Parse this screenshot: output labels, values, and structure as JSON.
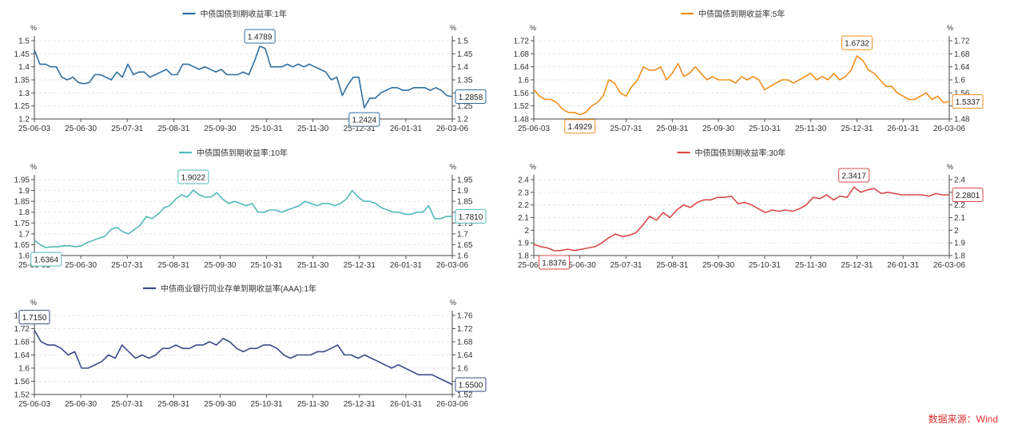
{
  "source_label": "数据来源：Wind",
  "chart_data": [
    {
      "type": "line",
      "title": "中债国债到期收益率:1年",
      "color": "#2e6fa0",
      "ylabel": "%",
      "ylim": [
        1.2,
        1.5
      ],
      "yticks": [
        1.2,
        1.25,
        1.3,
        1.35,
        1.4,
        1.45,
        1.5
      ],
      "x_ticks": [
        "25-06-03",
        "25-06-30",
        "25-07-31",
        "25-08-31",
        "25-09-30",
        "25-10-31",
        "25-11-30",
        "25-12-31",
        "26-01-31",
        "26-03-06"
      ],
      "grid": true,
      "series": [
        {
          "name": "中债国债到期收益率:1年",
          "values": [
            1.465,
            1.41,
            1.41,
            1.4,
            1.4,
            1.36,
            1.35,
            1.36,
            1.34,
            1.335,
            1.34,
            1.37,
            1.37,
            1.36,
            1.35,
            1.38,
            1.36,
            1.41,
            1.37,
            1.38,
            1.38,
            1.36,
            1.37,
            1.38,
            1.39,
            1.37,
            1.37,
            1.41,
            1.41,
            1.4,
            1.39,
            1.4,
            1.39,
            1.38,
            1.39,
            1.37,
            1.37,
            1.37,
            1.38,
            1.37,
            1.42,
            1.4789,
            1.47,
            1.4,
            1.4,
            1.4,
            1.41,
            1.4,
            1.41,
            1.4,
            1.41,
            1.4,
            1.39,
            1.38,
            1.35,
            1.36,
            1.29,
            1.33,
            1.36,
            1.36,
            1.2424,
            1.28,
            1.28,
            1.3,
            1.31,
            1.32,
            1.32,
            1.31,
            1.31,
            1.32,
            1.32,
            1.32,
            1.31,
            1.32,
            1.31,
            1.29,
            1.2858
          ]
        }
      ],
      "annotations": [
        {
          "label": "1.4789",
          "index": 41
        },
        {
          "label": "1.2424",
          "index": 60
        },
        {
          "label": "1.2858",
          "index": 76,
          "end": true
        }
      ]
    },
    {
      "type": "line",
      "title": "中债国债到期收益率:5年",
      "color": "#f28e1c",
      "ylabel": "%",
      "ylim": [
        1.48,
        1.72
      ],
      "yticks": [
        1.48,
        1.52,
        1.56,
        1.6,
        1.64,
        1.68,
        1.72
      ],
      "x_ticks": [
        "25-06-03",
        "25-06-30",
        "25-07-31",
        "25-08-31",
        "25-09-30",
        "25-10-31",
        "25-11-30",
        "25-12-31",
        "26-01-31",
        "26-03-06"
      ],
      "grid": true,
      "series": [
        {
          "name": "中债国债到期收益率:5年",
          "values": [
            1.57,
            1.55,
            1.54,
            1.54,
            1.53,
            1.51,
            1.5,
            1.5,
            1.4929,
            1.5,
            1.52,
            1.53,
            1.55,
            1.6,
            1.59,
            1.56,
            1.55,
            1.58,
            1.6,
            1.64,
            1.63,
            1.63,
            1.64,
            1.6,
            1.62,
            1.65,
            1.61,
            1.62,
            1.64,
            1.62,
            1.6,
            1.61,
            1.6,
            1.6,
            1.6,
            1.59,
            1.61,
            1.6,
            1.61,
            1.6,
            1.57,
            1.58,
            1.59,
            1.6,
            1.6,
            1.59,
            1.6,
            1.61,
            1.62,
            1.6,
            1.61,
            1.6,
            1.62,
            1.6,
            1.61,
            1.63,
            1.6732,
            1.66,
            1.63,
            1.62,
            1.6,
            1.58,
            1.58,
            1.56,
            1.55,
            1.54,
            1.54,
            1.55,
            1.56,
            1.54,
            1.55,
            1.53,
            1.5337
          ]
        }
      ],
      "annotations": [
        {
          "label": "1.4929",
          "index": 8
        },
        {
          "label": "1.6732",
          "index": 56
        },
        {
          "label": "1.5337",
          "index": 72,
          "end": true
        }
      ]
    },
    {
      "type": "line",
      "title": "中债国债到期收益率:10年",
      "color": "#52b8b8",
      "ylabel": "%",
      "ylim": [
        1.6,
        1.95
      ],
      "yticks": [
        1.6,
        1.65,
        1.7,
        1.75,
        1.8,
        1.85,
        1.9,
        1.95
      ],
      "x_ticks": [
        "25-06-03",
        "25-06-30",
        "25-07-31",
        "25-08-31",
        "25-09-30",
        "25-10-31",
        "25-11-30",
        "25-12-31",
        "26-01-31",
        "26-03-06"
      ],
      "grid": true,
      "series": [
        {
          "name": "中债国债到期收益率:10年",
          "values": [
            1.67,
            1.65,
            1.6364,
            1.64,
            1.64,
            1.645,
            1.645,
            1.64,
            1.645,
            1.66,
            1.67,
            1.68,
            1.69,
            1.72,
            1.73,
            1.71,
            1.7,
            1.72,
            1.74,
            1.78,
            1.77,
            1.79,
            1.82,
            1.83,
            1.86,
            1.88,
            1.87,
            1.9022,
            1.88,
            1.87,
            1.87,
            1.89,
            1.86,
            1.84,
            1.85,
            1.84,
            1.83,
            1.84,
            1.8,
            1.8,
            1.81,
            1.81,
            1.8,
            1.81,
            1.82,
            1.83,
            1.85,
            1.84,
            1.83,
            1.84,
            1.84,
            1.83,
            1.84,
            1.86,
            1.9,
            1.87,
            1.85,
            1.85,
            1.84,
            1.82,
            1.81,
            1.8,
            1.8,
            1.79,
            1.79,
            1.8,
            1.8,
            1.83,
            1.77,
            1.77,
            1.78,
            1.781
          ]
        }
      ],
      "annotations": [
        {
          "label": "1.6364",
          "index": 2
        },
        {
          "label": "1.9022",
          "index": 27
        },
        {
          "label": "1.7810",
          "index": 71,
          "end": true
        }
      ]
    },
    {
      "type": "line",
      "title": "中债国债到期收益率:30年",
      "color": "#d94848",
      "ylabel": "%",
      "ylim": [
        1.8,
        2.4
      ],
      "yticks": [
        1.8,
        1.9,
        2,
        2.1,
        2.2,
        2.3,
        2.4
      ],
      "x_ticks": [
        "25-06-03",
        "25-06-30",
        "25-07-31",
        "25-08-31",
        "25-09-30",
        "25-10-31",
        "25-11-30",
        "25-12-31",
        "26-01-31",
        "26-03-06"
      ],
      "grid": true,
      "series": [
        {
          "name": "中债国债到期收益率:30年",
          "values": [
            1.89,
            1.87,
            1.86,
            1.8376,
            1.84,
            1.85,
            1.84,
            1.85,
            1.86,
            1.87,
            1.9,
            1.94,
            1.97,
            1.95,
            1.96,
            1.98,
            2.04,
            2.11,
            2.08,
            2.14,
            2.1,
            2.16,
            2.2,
            2.18,
            2.22,
            2.24,
            2.24,
            2.26,
            2.26,
            2.27,
            2.21,
            2.22,
            2.2,
            2.17,
            2.14,
            2.16,
            2.15,
            2.16,
            2.15,
            2.17,
            2.2,
            2.26,
            2.25,
            2.28,
            2.24,
            2.27,
            2.26,
            2.3417,
            2.3,
            2.32,
            2.33,
            2.29,
            2.3,
            2.29,
            2.28,
            2.28,
            2.28,
            2.28,
            2.27,
            2.29,
            2.28,
            2.2801
          ]
        }
      ],
      "annotations": [
        {
          "label": "1.8376",
          "index": 3
        },
        {
          "label": "2.3417",
          "index": 47
        },
        {
          "label": "2.2801",
          "index": 61,
          "end": true
        }
      ]
    },
    {
      "type": "line",
      "title": "中债商业银行同业存单到期收益率(AAA):1年",
      "color": "#3b4a8a",
      "ylabel": "%",
      "ylim": [
        1.52,
        1.76
      ],
      "yticks": [
        1.52,
        1.56,
        1.6,
        1.64,
        1.68,
        1.72,
        1.76
      ],
      "x_ticks": [
        "25-06-03",
        "25-06-30",
        "25-07-31",
        "25-08-31",
        "25-09-30",
        "25-10-31",
        "25-11-30",
        "25-12-31",
        "26-01-31",
        "26-03-06"
      ],
      "grid": true,
      "series": [
        {
          "name": "中债商业银行同业存单到期收益率(AAA):1年",
          "values": [
            1.715,
            1.68,
            1.67,
            1.67,
            1.66,
            1.64,
            1.65,
            1.6,
            1.6,
            1.61,
            1.62,
            1.64,
            1.63,
            1.67,
            1.65,
            1.63,
            1.64,
            1.63,
            1.64,
            1.66,
            1.66,
            1.67,
            1.66,
            1.66,
            1.67,
            1.67,
            1.68,
            1.67,
            1.69,
            1.68,
            1.66,
            1.65,
            1.66,
            1.66,
            1.67,
            1.67,
            1.66,
            1.64,
            1.63,
            1.64,
            1.64,
            1.64,
            1.65,
            1.65,
            1.66,
            1.67,
            1.64,
            1.64,
            1.63,
            1.64,
            1.63,
            1.62,
            1.61,
            1.6,
            1.61,
            1.6,
            1.59,
            1.58,
            1.58,
            1.58,
            1.57,
            1.56,
            1.55
          ]
        }
      ],
      "annotations": [
        {
          "label": "1.7150",
          "index": 0
        },
        {
          "label": "1.5500",
          "index": 62,
          "end": true
        }
      ]
    }
  ]
}
